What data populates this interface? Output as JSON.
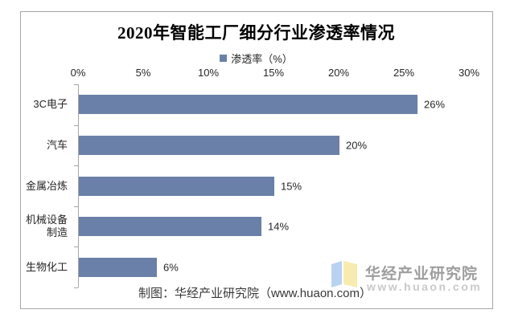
{
  "title": "2020年智能工厂细分行业渗透率情况",
  "legend": {
    "label": "渗透率（%）",
    "swatch_color": "#6A80A8"
  },
  "chart_data": {
    "type": "bar",
    "orientation": "horizontal",
    "title": "2020年智能工厂细分行业渗透率情况",
    "legend_entries": [
      "渗透率（%）"
    ],
    "legend_position": "top",
    "categories": [
      "3C电子",
      "汽车",
      "金属冶炼",
      "机械设备制造",
      "生物化工"
    ],
    "category_lines": [
      [
        "3C电子"
      ],
      [
        "汽车"
      ],
      [
        "金属冶炼"
      ],
      [
        "机械设备",
        "制造"
      ],
      [
        "生物化工"
      ]
    ],
    "values": [
      26,
      20,
      15,
      14,
      6
    ],
    "value_labels": [
      "26%",
      "20%",
      "15%",
      "14%",
      "6%"
    ],
    "x_tick_labels": [
      "0%",
      "5%",
      "10%",
      "15%",
      "20%",
      "25%",
      "30%"
    ],
    "xlim": [
      0,
      30
    ],
    "grid": false,
    "bar_color": "#6A80A8",
    "axis_color": "#A6A6A6"
  },
  "watermark": {
    "name": "华经产业研究院",
    "url": "www.huaon.com",
    "logo_left_color": "#B9D2F1",
    "logo_right_color": "#F8EBB0"
  },
  "footer": {
    "credit": "制图：华经产业研究院（www.huaon.com）"
  }
}
